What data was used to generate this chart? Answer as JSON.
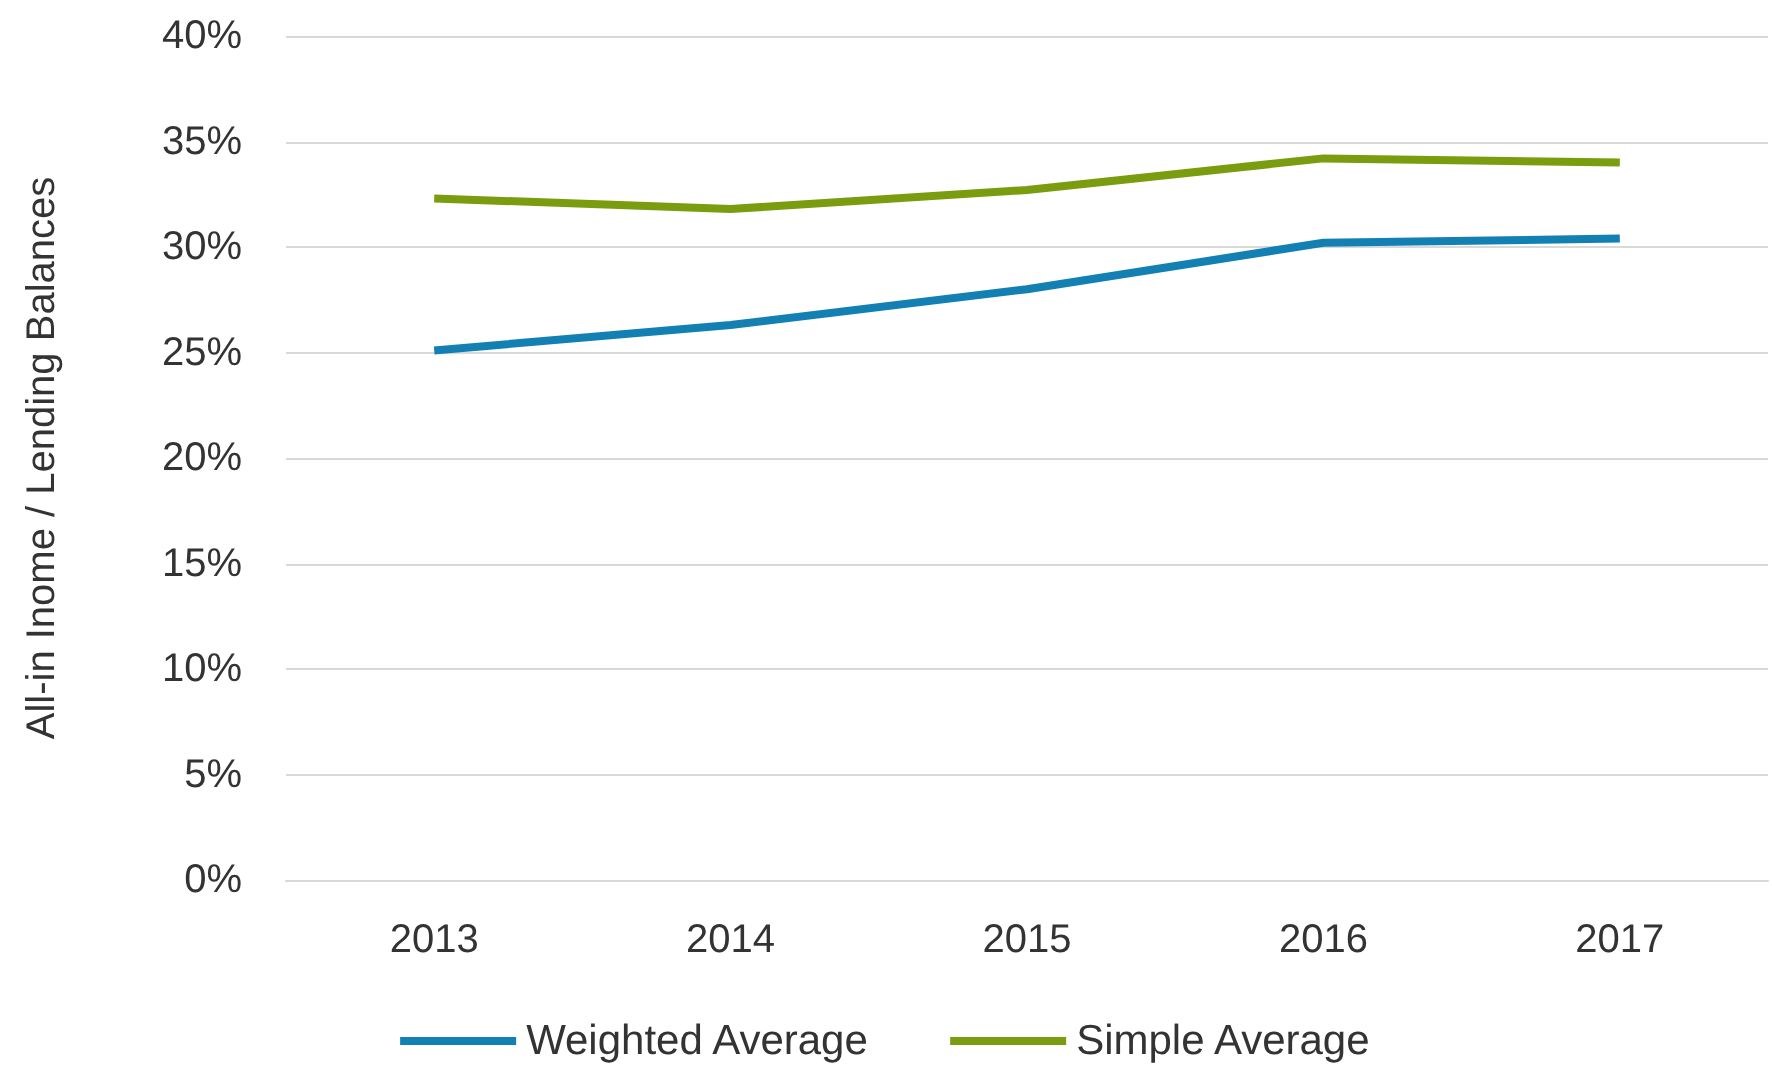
{
  "chart_data": {
    "type": "line",
    "ylabel": "All-in Inome / Lending Balances",
    "categories": [
      "2013",
      "2014",
      "2015",
      "2016",
      "2017"
    ],
    "series": [
      {
        "name": "Weighted Average",
        "color": "#1380b3",
        "values": [
          25.1,
          26.3,
          28.0,
          30.2,
          30.4
        ]
      },
      {
        "name": "Simple Average",
        "color": "#7a9c0f",
        "values": [
          32.3,
          31.8,
          32.7,
          34.2,
          34.0
        ]
      }
    ],
    "ylim": [
      0,
      40
    ],
    "yticks": [
      {
        "value": 0,
        "label": "0%"
      },
      {
        "value": 5,
        "label": "5%"
      },
      {
        "value": 10,
        "label": "10%"
      },
      {
        "value": 15,
        "label": "15%"
      },
      {
        "value": 20,
        "label": "20%"
      },
      {
        "value": 25,
        "label": "25%"
      },
      {
        "value": 30,
        "label": "30%"
      },
      {
        "value": 35,
        "label": "35%"
      },
      {
        "value": 40,
        "label": "40%"
      }
    ],
    "grid": "y",
    "legend": "bottom",
    "marker": "none"
  }
}
